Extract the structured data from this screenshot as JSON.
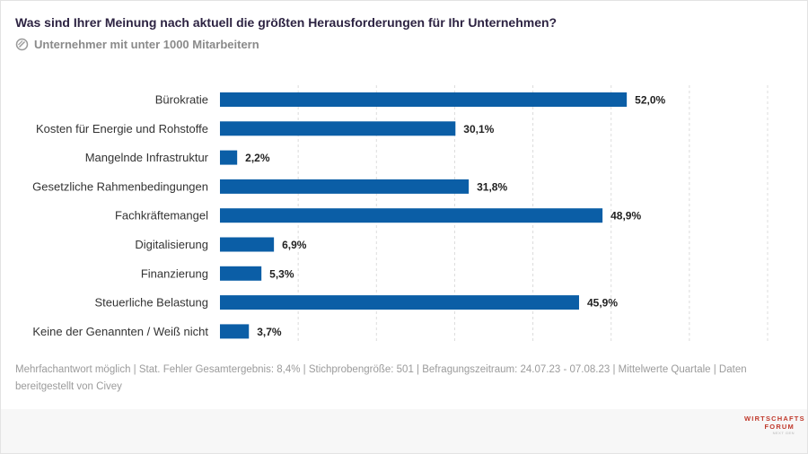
{
  "header": {
    "title": "Was sind Ihrer Meinung nach aktuell die größten Herausforderungen für Ihr Unternehmen?",
    "subtitle": "Unternehmer mit unter 1000 Mitarbeitern",
    "subtitle_icon": "filter-icon"
  },
  "chart_data": {
    "type": "bar",
    "orientation": "horizontal",
    "categories": [
      "Bürokratie",
      "Kosten für Energie und Rohstoffe",
      "Mangelnde Infrastruktur",
      "Gesetzliche Rahmenbedingungen",
      "Fachkräftemangel",
      "Digitalisierung",
      "Finanzierung",
      "Steuerliche Belastung",
      "Keine der Genannten / Weiß nicht"
    ],
    "values": [
      52.0,
      30.1,
      2.2,
      31.8,
      48.9,
      6.9,
      5.3,
      45.9,
      3.7
    ],
    "value_labels": [
      "52,0%",
      "30,1%",
      "2,2%",
      "31,8%",
      "48,9%",
      "6,9%",
      "5,3%",
      "45,9%",
      "3,7%"
    ],
    "unit": "%",
    "xlim": [
      0,
      70
    ],
    "grid_step": 10,
    "grid": true,
    "bar_color": "#0b5ea6",
    "gridline_color": "#dcdcdc",
    "label_color": "#333333",
    "value_color": "#222222"
  },
  "footer": {
    "note": "Mehrfachantwort möglich | Stat. Fehler Gesamtergebnis: 8,4% | Stichprobengröße: 501 | Befragungszeitraum: 24.07.23 - 07.08.23 | Mittelwerte Quartale | Daten bereitgestellt von Civey",
    "logo_line1": "WIRTSCHAFTS",
    "logo_line2": "FORUM",
    "logo_line3": "NEXT GEN"
  }
}
